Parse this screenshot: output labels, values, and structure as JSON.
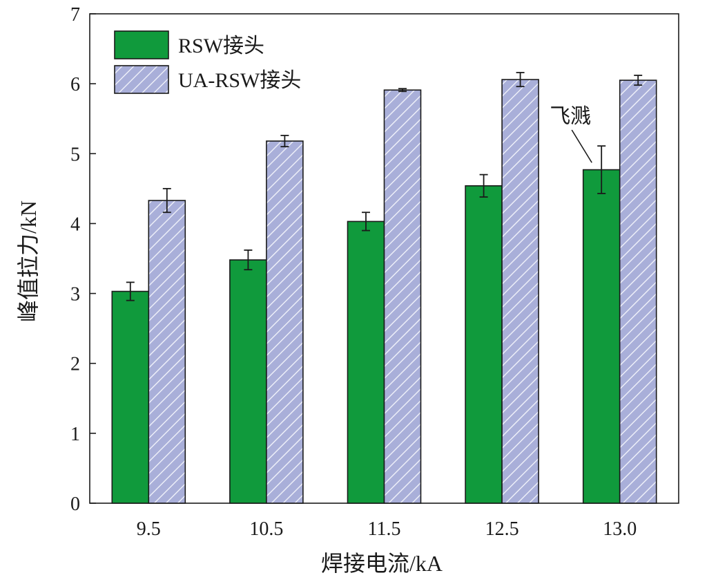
{
  "chart_data": {
    "type": "bar",
    "xlabel": "焊接电流/kA",
    "ylabel": "峰值拉力/kN",
    "categories": [
      "9.5",
      "10.5",
      "11.5",
      "12.5",
      "13.0"
    ],
    "ylim": [
      0,
      7
    ],
    "yticks": [
      0,
      1,
      2,
      3,
      4,
      5,
      6,
      7
    ],
    "grid": false,
    "legend_position": "top-left",
    "series": [
      {
        "name": "RSW接头",
        "values": [
          3.03,
          3.48,
          4.03,
          4.54,
          4.77
        ],
        "errors": [
          0.13,
          0.14,
          0.13,
          0.16,
          0.34
        ],
        "color": "#109a3c",
        "pattern": "solid"
      },
      {
        "name": "UA-RSW接头",
        "values": [
          4.33,
          5.18,
          5.91,
          6.06,
          6.05
        ],
        "errors": [
          0.17,
          0.08,
          0.02,
          0.1,
          0.07
        ],
        "color": "#a9afd9",
        "pattern": "diagonal-hatch"
      }
    ],
    "annotations": [
      {
        "text": "飞溅",
        "category": "13.0",
        "series": "RSW接头"
      }
    ]
  }
}
